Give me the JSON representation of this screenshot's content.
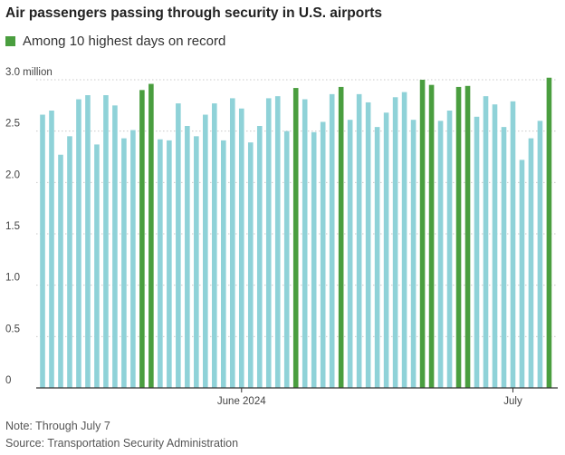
{
  "chart_data": {
    "type": "bar",
    "title": "Air passengers passing through security in U.S. airports",
    "legend": [
      {
        "label": "Among 10 highest days on record",
        "color": "#4a9e3f"
      }
    ],
    "y_unit_label": "3.0 million",
    "yticks": [
      {
        "value": 0,
        "label": "0"
      },
      {
        "value": 0.5,
        "label": "0.5"
      },
      {
        "value": 1.0,
        "label": "1.0"
      },
      {
        "value": 1.5,
        "label": "1.5"
      },
      {
        "value": 2.0,
        "label": "2.0"
      },
      {
        "value": 2.5,
        "label": "2.5"
      },
      {
        "value": 3.0,
        "label": "3.0"
      }
    ],
    "ylim": [
      0,
      3.0
    ],
    "xtick_labels": [
      {
        "index": 22,
        "label": "June 2024"
      },
      {
        "index": 52,
        "label": "July"
      }
    ],
    "colors": {
      "normal": "#8fd2d8",
      "highlight": "#4a9e3f"
    },
    "values": [
      2.66,
      2.7,
      2.27,
      2.45,
      2.81,
      2.85,
      2.37,
      2.85,
      2.75,
      2.43,
      2.51,
      2.9,
      2.96,
      2.42,
      2.41,
      2.77,
      2.55,
      2.45,
      2.66,
      2.77,
      2.41,
      2.82,
      2.72,
      2.39,
      2.55,
      2.82,
      2.84,
      2.5,
      2.92,
      2.81,
      2.49,
      2.59,
      2.86,
      2.93,
      2.61,
      2.86,
      2.78,
      2.54,
      2.68,
      2.83,
      2.88,
      2.61,
      3.0,
      2.95,
      2.6,
      2.7,
      2.93,
      2.94,
      2.64,
      2.84,
      2.76,
      2.54,
      2.79,
      2.22,
      2.43,
      2.6,
      3.02
    ],
    "highlight": [
      false,
      false,
      false,
      false,
      false,
      false,
      false,
      false,
      false,
      false,
      false,
      true,
      true,
      false,
      false,
      false,
      false,
      false,
      false,
      false,
      false,
      false,
      false,
      false,
      false,
      false,
      false,
      false,
      true,
      false,
      false,
      false,
      false,
      true,
      false,
      false,
      false,
      false,
      false,
      false,
      false,
      false,
      true,
      true,
      false,
      false,
      true,
      true,
      false,
      false,
      false,
      false,
      false,
      false,
      false,
      false,
      true
    ]
  },
  "notes": {
    "note": "Note: Through July 7",
    "source": "Source: Transportation Security Administration"
  }
}
